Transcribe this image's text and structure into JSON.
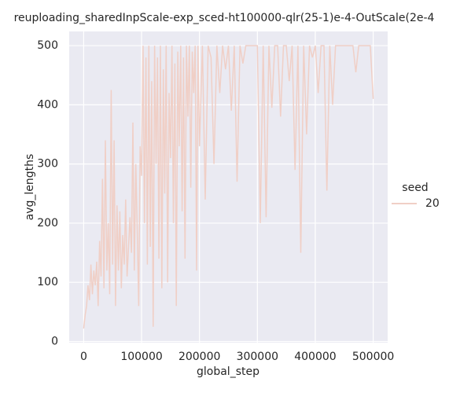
{
  "chart_data": {
    "type": "line",
    "title": "reuploading_sharedInpScale-exp_sced-ht100000-qlr(25-1)e-4-OutScale(2e-4",
    "xlabel": "global_step",
    "ylabel": "avg_lengths",
    "legend_title": "seed",
    "legend": "right",
    "grid": true,
    "xlim": [
      -25000,
      525000
    ],
    "xticks": [
      0,
      100000,
      200000,
      300000,
      400000,
      500000
    ],
    "ylim": [
      -2,
      524
    ],
    "yticks": [
      0,
      100,
      200,
      300,
      400,
      500
    ],
    "x": [
      0,
      2500,
      5000,
      7500,
      10000,
      12500,
      15000,
      17500,
      20000,
      22500,
      25000,
      27500,
      30000,
      32500,
      35000,
      37500,
      40000,
      42500,
      45000,
      47500,
      50000,
      52500,
      55000,
      57500,
      60000,
      62500,
      65000,
      67500,
      70000,
      72500,
      75000,
      77500,
      80000,
      82500,
      85000,
      87500,
      90000,
      92500,
      95000,
      97500,
      100000,
      102500,
      105000,
      107500,
      110000,
      112500,
      115000,
      117500,
      120000,
      122500,
      125000,
      127500,
      130000,
      132500,
      135000,
      137500,
      140000,
      142500,
      145000,
      147500,
      150000,
      152500,
      155000,
      157500,
      160000,
      162500,
      165000,
      167500,
      170000,
      172500,
      175000,
      177500,
      180000,
      182500,
      185000,
      187500,
      190000,
      192500,
      195000,
      197500,
      200000,
      205000,
      210000,
      215000,
      220000,
      225000,
      230000,
      235000,
      240000,
      245000,
      250000,
      255000,
      260000,
      265000,
      270000,
      275000,
      280000,
      285000,
      290000,
      295000,
      300000,
      305000,
      310000,
      315000,
      320000,
      325000,
      330000,
      335000,
      340000,
      345000,
      350000,
      355000,
      360000,
      365000,
      370000,
      375000,
      380000,
      385000,
      390000,
      395000,
      400000,
      405000,
      410000,
      415000,
      420000,
      425000,
      430000,
      435000,
      440000,
      445000,
      450000,
      455000,
      460000,
      465000,
      470000,
      475000,
      480000,
      485000,
      490000,
      495000,
      500000
    ],
    "series": [
      {
        "name": "20",
        "color": "#f0cfc6",
        "values": [
          22,
          45,
          60,
          95,
          70,
          130,
          80,
          120,
          95,
          135,
          60,
          170,
          110,
          275,
          90,
          340,
          120,
          200,
          80,
          425,
          130,
          340,
          60,
          230,
          120,
          220,
          90,
          180,
          130,
          240,
          110,
          160,
          210,
          150,
          370,
          120,
          300,
          190,
          60,
          330,
          280,
          500,
          200,
          480,
          130,
          500,
          160,
          440,
          25,
          500,
          300,
          480,
          140,
          500,
          90,
          460,
          250,
          500,
          100,
          420,
          310,
          500,
          200,
          470,
          60,
          490,
          330,
          500,
          220,
          480,
          140,
          500,
          380,
          500,
          260,
          490,
          420,
          500,
          120,
          500,
          330,
          500,
          240,
          500,
          480,
          300,
          500,
          420,
          500,
          460,
          500,
          390,
          500,
          270,
          500,
          470,
          500,
          500,
          500,
          500,
          500,
          200,
          500,
          210,
          500,
          395,
          500,
          500,
          380,
          500,
          500,
          440,
          500,
          290,
          500,
          150,
          500,
          350,
          500,
          480,
          500,
          420,
          500,
          500,
          255,
          500,
          400,
          500,
          500,
          500,
          500,
          500,
          500,
          500,
          455,
          500,
          500,
          500,
          500,
          500,
          410
        ]
      }
    ]
  }
}
